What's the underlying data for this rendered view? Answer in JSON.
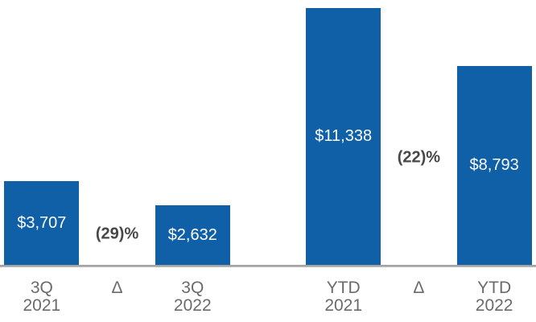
{
  "chart_data": {
    "type": "bar",
    "title": "",
    "xlabel": "",
    "ylabel": "",
    "ylim": [
      0,
      11700
    ],
    "grid": false,
    "legend": "none",
    "bar_color": "#1060A8",
    "value_label_color": "#FFFFFF",
    "delta_label_color": "#474747",
    "axis_label_color": "#6B6B6B",
    "baseline_color": "#A8A8A8",
    "slots": [
      {
        "kind": "bar",
        "tick": [
          "3Q",
          "2021"
        ],
        "value": 3707,
        "value_label": "$3,707"
      },
      {
        "kind": "delta",
        "tick": [
          "Δ",
          ""
        ],
        "delta_label": "(29)%",
        "label_center_y": 291
      },
      {
        "kind": "bar",
        "tick": [
          "3Q",
          "2022"
        ],
        "value": 2632,
        "value_label": "$2,632"
      },
      {
        "kind": "spacer",
        "tick": [
          "",
          ""
        ]
      },
      {
        "kind": "bar",
        "tick": [
          "YTD",
          "2021"
        ],
        "value": 11338,
        "value_label": "$11,338"
      },
      {
        "kind": "delta",
        "tick": [
          "Δ",
          ""
        ],
        "delta_label": "(22)%",
        "label_center_y": 196
      },
      {
        "kind": "bar",
        "tick": [
          "YTD",
          "2022"
        ],
        "value": 8793,
        "value_label": "$8,793"
      }
    ]
  }
}
